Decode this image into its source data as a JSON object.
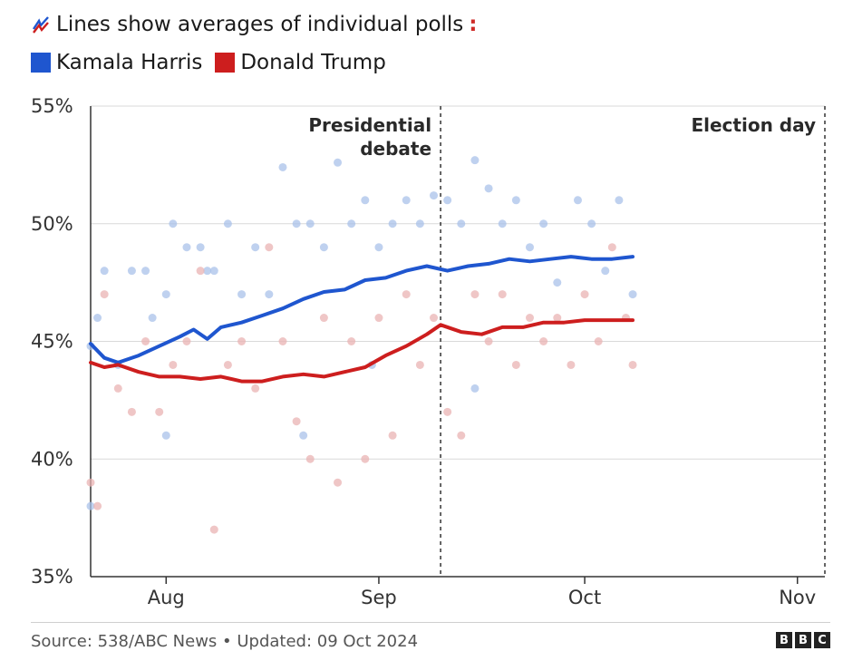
{
  "subtitle": "Lines show averages of individual polls",
  "colors": {
    "harris": "#1f56cf",
    "trump": "#cd1e1e",
    "harris_dots": "#a9c1ea",
    "trump_dots": "#eab3b3",
    "gridline": "#d9d9d9"
  },
  "icons": {
    "subtitle_icon": "trend-lines-icon",
    "trailing": "colon-dots-icon"
  },
  "legend": [
    {
      "name": "Kamala Harris",
      "color": "#1f56cf"
    },
    {
      "name": "Donald Trump",
      "color": "#cd1e1e"
    }
  ],
  "footer": {
    "source": "Source: 538/ABC News • Updated: 09 Oct 2024",
    "logo_letters": [
      "B",
      "B",
      "C"
    ]
  },
  "chart_data": {
    "type": "scatter",
    "x_axis": {
      "ticks": [
        {
          "label": "Aug",
          "date": "2024-08-01"
        },
        {
          "label": "Sep",
          "date": "2024-09-01"
        },
        {
          "label": "Oct",
          "date": "2024-10-01"
        },
        {
          "label": "Nov",
          "date": "2024-11-01"
        }
      ],
      "range": [
        "2024-07-21",
        "2024-11-05"
      ]
    },
    "y_axis": {
      "ticks": [
        {
          "label": "35%",
          "value": 35
        },
        {
          "label": "40%",
          "value": 40
        },
        {
          "label": "45%",
          "value": 45
        },
        {
          "label": "50%",
          "value": 50
        },
        {
          "label": "55%",
          "value": 55
        }
      ],
      "ylim": [
        35,
        55
      ]
    },
    "grid": "horizontal",
    "annotations": [
      {
        "lines": [
          "Presidential",
          "debate"
        ],
        "date": "2024-09-10"
      },
      {
        "lines": [
          "Election day"
        ],
        "date": "2024-11-05"
      }
    ],
    "series": [
      {
        "name": "Kamala Harris",
        "type": "line",
        "points": [
          [
            "2024-07-21",
            44.9
          ],
          [
            "2024-07-23",
            44.3
          ],
          [
            "2024-07-25",
            44.1
          ],
          [
            "2024-07-28",
            44.4
          ],
          [
            "2024-07-31",
            44.8
          ],
          [
            "2024-08-03",
            45.2
          ],
          [
            "2024-08-05",
            45.5
          ],
          [
            "2024-08-07",
            45.1
          ],
          [
            "2024-08-09",
            45.6
          ],
          [
            "2024-08-12",
            45.8
          ],
          [
            "2024-08-15",
            46.1
          ],
          [
            "2024-08-18",
            46.4
          ],
          [
            "2024-08-21",
            46.8
          ],
          [
            "2024-08-24",
            47.1
          ],
          [
            "2024-08-27",
            47.2
          ],
          [
            "2024-08-30",
            47.6
          ],
          [
            "2024-09-02",
            47.7
          ],
          [
            "2024-09-05",
            48.0
          ],
          [
            "2024-09-08",
            48.2
          ],
          [
            "2024-09-11",
            48.0
          ],
          [
            "2024-09-14",
            48.2
          ],
          [
            "2024-09-17",
            48.3
          ],
          [
            "2024-09-20",
            48.5
          ],
          [
            "2024-09-23",
            48.4
          ],
          [
            "2024-09-26",
            48.5
          ],
          [
            "2024-09-29",
            48.6
          ],
          [
            "2024-10-02",
            48.5
          ],
          [
            "2024-10-05",
            48.5
          ],
          [
            "2024-10-08",
            48.6
          ]
        ]
      },
      {
        "name": "Donald Trump",
        "type": "line",
        "points": [
          [
            "2024-07-21",
            44.1
          ],
          [
            "2024-07-23",
            43.9
          ],
          [
            "2024-07-25",
            44.0
          ],
          [
            "2024-07-28",
            43.7
          ],
          [
            "2024-07-31",
            43.5
          ],
          [
            "2024-08-03",
            43.5
          ],
          [
            "2024-08-06",
            43.4
          ],
          [
            "2024-08-09",
            43.5
          ],
          [
            "2024-08-12",
            43.3
          ],
          [
            "2024-08-15",
            43.3
          ],
          [
            "2024-08-18",
            43.5
          ],
          [
            "2024-08-21",
            43.6
          ],
          [
            "2024-08-24",
            43.5
          ],
          [
            "2024-08-27",
            43.7
          ],
          [
            "2024-08-30",
            43.9
          ],
          [
            "2024-09-02",
            44.4
          ],
          [
            "2024-09-05",
            44.8
          ],
          [
            "2024-09-08",
            45.3
          ],
          [
            "2024-09-10",
            45.7
          ],
          [
            "2024-09-13",
            45.4
          ],
          [
            "2024-09-16",
            45.3
          ],
          [
            "2024-09-19",
            45.6
          ],
          [
            "2024-09-22",
            45.6
          ],
          [
            "2024-09-25",
            45.8
          ],
          [
            "2024-09-28",
            45.8
          ],
          [
            "2024-10-01",
            45.9
          ],
          [
            "2024-10-04",
            45.9
          ],
          [
            "2024-10-08",
            45.9
          ]
        ]
      },
      {
        "name": "Kamala Harris",
        "type": "scatter",
        "points": [
          [
            "2024-07-21",
            44.8
          ],
          [
            "2024-07-21",
            38.0
          ],
          [
            "2024-07-22",
            46.0
          ],
          [
            "2024-07-23",
            48.0
          ],
          [
            "2024-07-25",
            44.0
          ],
          [
            "2024-07-27",
            48.0
          ],
          [
            "2024-07-29",
            48.0
          ],
          [
            "2024-07-30",
            46.0
          ],
          [
            "2024-08-01",
            47.0
          ],
          [
            "2024-08-02",
            50.0
          ],
          [
            "2024-08-04",
            49.0
          ],
          [
            "2024-08-06",
            49.0
          ],
          [
            "2024-08-07",
            48.0
          ],
          [
            "2024-08-08",
            48.0
          ],
          [
            "2024-08-10",
            50.0
          ],
          [
            "2024-08-12",
            47.0
          ],
          [
            "2024-08-14",
            49.0
          ],
          [
            "2024-08-16",
            47.0
          ],
          [
            "2024-08-18",
            52.4
          ],
          [
            "2024-08-20",
            50.0
          ],
          [
            "2024-08-22",
            50.0
          ],
          [
            "2024-08-24",
            49.0
          ],
          [
            "2024-08-26",
            52.6
          ],
          [
            "2024-08-28",
            50.0
          ],
          [
            "2024-08-30",
            51.0
          ],
          [
            "2024-09-01",
            49.0
          ],
          [
            "2024-09-03",
            50.0
          ],
          [
            "2024-09-05",
            51.0
          ],
          [
            "2024-09-07",
            50.0
          ],
          [
            "2024-09-09",
            51.2
          ],
          [
            "2024-09-11",
            51.0
          ],
          [
            "2024-09-13",
            50.0
          ],
          [
            "2024-09-15",
            52.7
          ],
          [
            "2024-09-17",
            51.5
          ],
          [
            "2024-09-19",
            50.0
          ],
          [
            "2024-09-21",
            51.0
          ],
          [
            "2024-09-23",
            49.0
          ],
          [
            "2024-09-25",
            50.0
          ],
          [
            "2024-09-27",
            47.5
          ],
          [
            "2024-09-30",
            51.0
          ],
          [
            "2024-10-02",
            50.0
          ],
          [
            "2024-10-04",
            48.0
          ],
          [
            "2024-10-06",
            51.0
          ],
          [
            "2024-10-08",
            47.0
          ],
          [
            "2024-08-01",
            41.0
          ],
          [
            "2024-08-21",
            41.0
          ],
          [
            "2024-09-15",
            43.0
          ],
          [
            "2024-08-31",
            44.0
          ]
        ]
      },
      {
        "name": "Donald Trump",
        "type": "scatter",
        "points": [
          [
            "2024-07-21",
            39.0
          ],
          [
            "2024-07-22",
            38.0
          ],
          [
            "2024-07-23",
            47.0
          ],
          [
            "2024-07-25",
            43.0
          ],
          [
            "2024-07-27",
            42.0
          ],
          [
            "2024-07-29",
            45.0
          ],
          [
            "2024-07-31",
            42.0
          ],
          [
            "2024-08-02",
            44.0
          ],
          [
            "2024-08-04",
            45.0
          ],
          [
            "2024-08-06",
            48.0
          ],
          [
            "2024-08-08",
            37.0
          ],
          [
            "2024-08-10",
            44.0
          ],
          [
            "2024-08-12",
            45.0
          ],
          [
            "2024-08-14",
            43.0
          ],
          [
            "2024-08-16",
            49.0
          ],
          [
            "2024-08-18",
            45.0
          ],
          [
            "2024-08-20",
            41.6
          ],
          [
            "2024-08-22",
            40.0
          ],
          [
            "2024-08-24",
            46.0
          ],
          [
            "2024-08-26",
            39.0
          ],
          [
            "2024-08-28",
            45.0
          ],
          [
            "2024-08-30",
            40.0
          ],
          [
            "2024-09-01",
            46.0
          ],
          [
            "2024-09-03",
            41.0
          ],
          [
            "2024-09-05",
            47.0
          ],
          [
            "2024-09-07",
            44.0
          ],
          [
            "2024-09-09",
            46.0
          ],
          [
            "2024-09-11",
            42.0
          ],
          [
            "2024-09-13",
            41.0
          ],
          [
            "2024-09-15",
            47.0
          ],
          [
            "2024-09-17",
            45.0
          ],
          [
            "2024-09-19",
            47.0
          ],
          [
            "2024-09-21",
            44.0
          ],
          [
            "2024-09-23",
            46.0
          ],
          [
            "2024-09-25",
            45.0
          ],
          [
            "2024-09-27",
            46.0
          ],
          [
            "2024-09-29",
            44.0
          ],
          [
            "2024-10-01",
            47.0
          ],
          [
            "2024-10-03",
            45.0
          ],
          [
            "2024-10-05",
            49.0
          ],
          [
            "2024-10-07",
            46.0
          ],
          [
            "2024-10-08",
            44.0
          ]
        ]
      }
    ]
  }
}
